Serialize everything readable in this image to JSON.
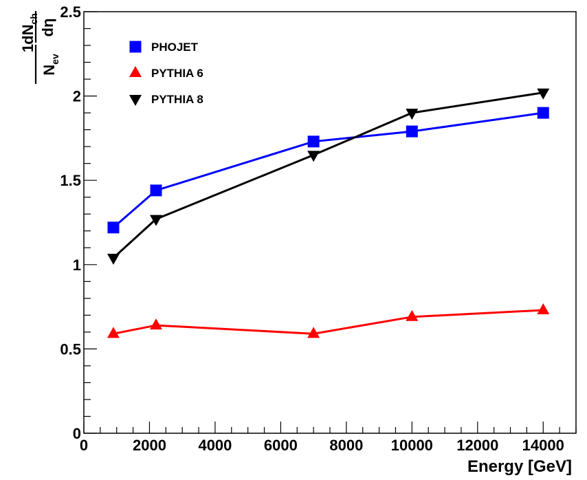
{
  "chart_data": {
    "type": "line",
    "xlabel": "Energy [GeV]",
    "ylabel": {
      "one": "1",
      "n": "N",
      "n_sub": "ev",
      "dn": "dN",
      "dn_sub": "ch",
      "deta": "dη"
    },
    "xlim": [
      0,
      15000
    ],
    "ylim": [
      0,
      2.5
    ],
    "x_ticks": [
      0,
      2000,
      4000,
      6000,
      8000,
      10000,
      12000,
      14000
    ],
    "x_tick_labels": [
      "0",
      "2000",
      "4000",
      "6000",
      "8000",
      "10000",
      "12000",
      "14000"
    ],
    "y_ticks": [
      0,
      0.5,
      1,
      1.5,
      2,
      2.5
    ],
    "y_tick_labels": [
      "0",
      "0.5",
      "1",
      "1.5",
      "2",
      "2.5"
    ],
    "grid": false,
    "legend_position": "top-left",
    "x": [
      900,
      2200,
      7000,
      10000,
      14000
    ],
    "series": [
      {
        "name": "PHOJET",
        "values": [
          1.22,
          1.44,
          1.73,
          1.79,
          1.9
        ],
        "color": "#0000ff",
        "line_color": "#0000ff",
        "marker": "square"
      },
      {
        "name": "PYTHIA 6",
        "values": [
          0.59,
          0.64,
          0.59,
          0.69,
          0.73
        ],
        "color": "#ff0000",
        "line_color": "#ff0000",
        "marker": "triangle-up"
      },
      {
        "name": "PYTHIA 8",
        "values": [
          1.04,
          1.27,
          1.65,
          1.9,
          2.02
        ],
        "color": "#000000",
        "line_color": "#000000",
        "marker": "triangle-down"
      }
    ]
  }
}
